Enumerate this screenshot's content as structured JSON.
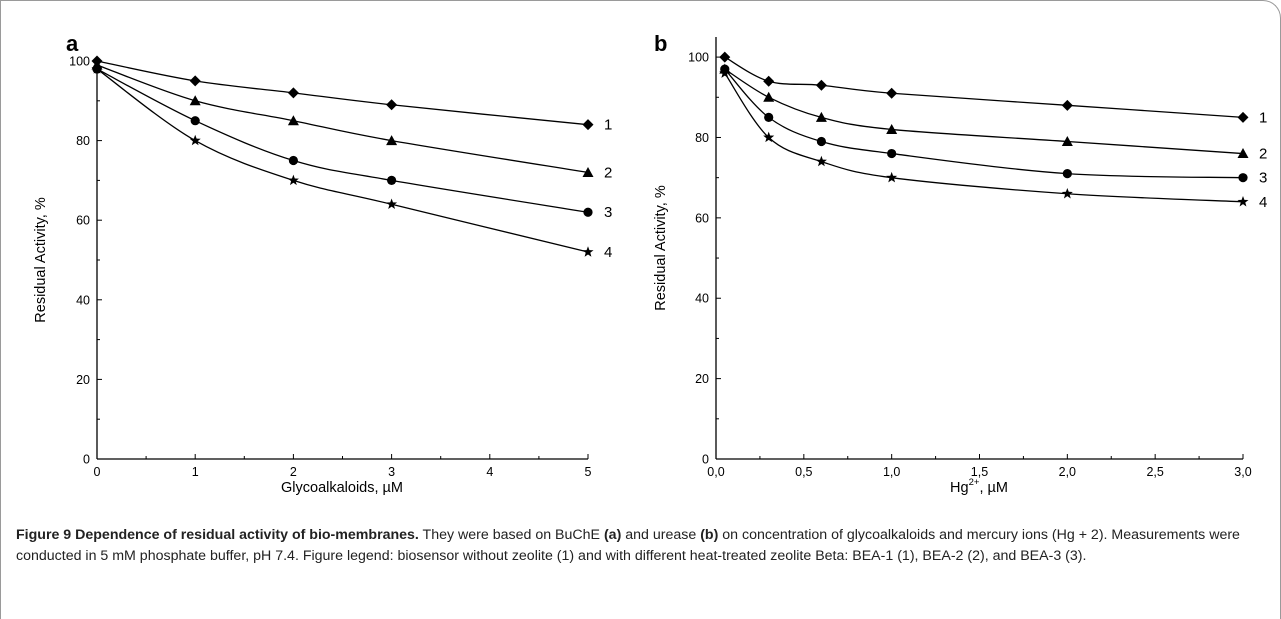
{
  "chart_data": [
    {
      "type": "line",
      "panel": "a",
      "xlabel": "Glycoalkaloids, µM",
      "ylabel": "Residual Activity, %",
      "xlim": [
        0,
        5
      ],
      "ylim": [
        0,
        100
      ],
      "xticks": [
        0,
        1,
        2,
        3,
        4,
        5
      ],
      "xtick_labels": [
        "0",
        "1",
        "2",
        "3",
        "4",
        "5"
      ],
      "yticks": [
        0,
        20,
        40,
        60,
        80,
        100
      ],
      "ytick_labels": [
        "0",
        "20",
        "40",
        "60",
        "80",
        "100"
      ],
      "grid": false,
      "series": [
        {
          "name": "1",
          "marker": "diamond",
          "points": [
            [
              0,
              100
            ],
            [
              1,
              95
            ],
            [
              2,
              92
            ],
            [
              3,
              89
            ],
            [
              5,
              84
            ]
          ]
        },
        {
          "name": "2",
          "marker": "triangle",
          "points": [
            [
              0,
              99
            ],
            [
              1,
              90
            ],
            [
              2,
              85
            ],
            [
              3,
              80
            ],
            [
              5,
              72
            ]
          ]
        },
        {
          "name": "3",
          "marker": "circle",
          "points": [
            [
              0,
              98
            ],
            [
              1,
              85
            ],
            [
              2,
              75
            ],
            [
              3,
              70
            ],
            [
              5,
              62
            ]
          ]
        },
        {
          "name": "4",
          "marker": "star",
          "points": [
            [
              0,
              98
            ],
            [
              1,
              80
            ],
            [
              2,
              70
            ],
            [
              3,
              64
            ],
            [
              5,
              52
            ]
          ]
        }
      ]
    },
    {
      "type": "line",
      "panel": "b",
      "xlabel": "Hg²⁺, µM",
      "ylabel": "Residual Activity, %",
      "xlim": [
        0,
        3
      ],
      "ylim": [
        0,
        105
      ],
      "xticks": [
        0,
        0.5,
        1,
        1.5,
        2,
        2.5,
        3
      ],
      "xtick_labels": [
        "0,0",
        "0,5",
        "1,0",
        "1,5",
        "2,0",
        "2,5",
        "3,0"
      ],
      "yticks": [
        0,
        20,
        40,
        60,
        80,
        100
      ],
      "ytick_labels": [
        "0",
        "20",
        "40",
        "60",
        "80",
        "100"
      ],
      "grid": false,
      "series": [
        {
          "name": "1",
          "marker": "diamond",
          "points": [
            [
              0.05,
              100
            ],
            [
              0.3,
              94
            ],
            [
              0.6,
              93
            ],
            [
              1,
              91
            ],
            [
              2,
              88
            ],
            [
              3,
              85
            ]
          ]
        },
        {
          "name": "2",
          "marker": "triangle",
          "points": [
            [
              0.05,
              97
            ],
            [
              0.3,
              90
            ],
            [
              0.6,
              85
            ],
            [
              1,
              82
            ],
            [
              2,
              79
            ],
            [
              3,
              76
            ]
          ]
        },
        {
          "name": "3",
          "marker": "circle",
          "points": [
            [
              0.05,
              97
            ],
            [
              0.3,
              85
            ],
            [
              0.6,
              79
            ],
            [
              1,
              76
            ],
            [
              2,
              71
            ],
            [
              3,
              70
            ]
          ]
        },
        {
          "name": "4",
          "marker": "star",
          "points": [
            [
              0.05,
              96
            ],
            [
              0.3,
              80
            ],
            [
              0.6,
              74
            ],
            [
              1,
              70
            ],
            [
              2,
              66
            ],
            [
              3,
              64
            ]
          ]
        }
      ]
    }
  ],
  "caption": {
    "title": "Figure 9 Dependence of residual activity of bio-membranes.",
    "text_1": " They were based on BuChE ",
    "bold_a": "(a)",
    "text_2": " and urease ",
    "bold_b": "(b)",
    "text_3": " on concentration of glycoalkaloids and mercury ions (Hg + 2). Measurements were conducted in 5 mM phosphate buffer, pH 7.4. Figure legend: biosensor without zeolite (1) and with different heat-treated zeolite Beta: BEA-1 (1), BEA-2 (2), and BEA-3 (3)."
  }
}
